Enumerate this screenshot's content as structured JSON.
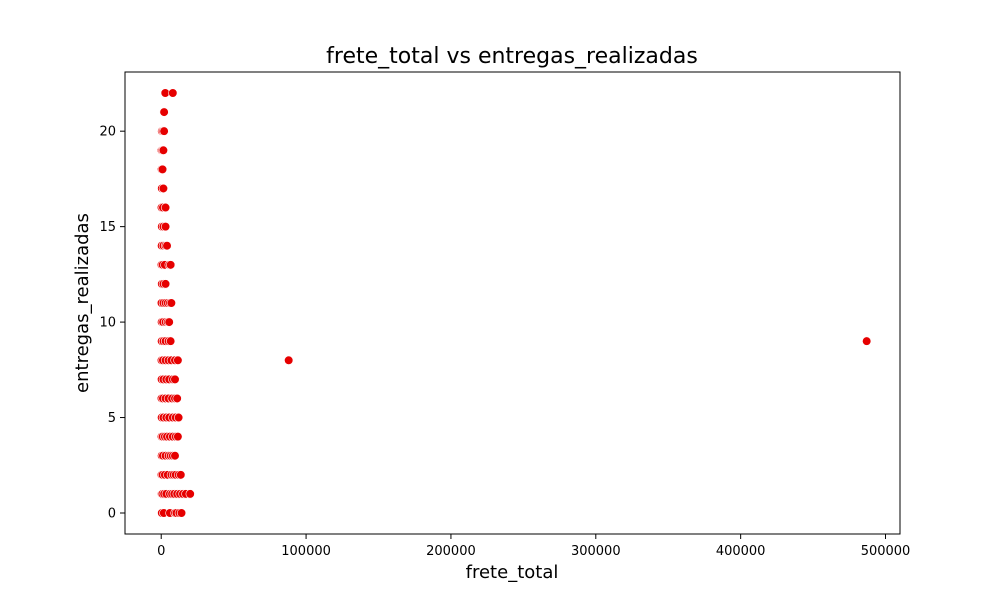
{
  "chart_data": {
    "type": "scatter",
    "title": "frete_total vs entregas_realizadas",
    "xlabel": "frete_total",
    "ylabel": "entregas_realizadas",
    "xlim": [
      -25000,
      510000
    ],
    "ylim": [
      -1.1,
      23.1
    ],
    "xticks": [
      0,
      100000,
      200000,
      300000,
      400000,
      500000
    ],
    "xtick_labels": [
      "0",
      "100000",
      "200000",
      "300000",
      "400000",
      "500000"
    ],
    "yticks": [
      0,
      5,
      10,
      15,
      20
    ],
    "ytick_labels": [
      "0",
      "5",
      "10",
      "15",
      "20"
    ],
    "grid": false,
    "legend": "none",
    "point_color": "#e60000",
    "point_edge_color": "#ffffff",
    "series": [
      {
        "points": [
          [
            400,
            0
          ],
          [
            1800,
            0
          ],
          [
            6000,
            0
          ],
          [
            9500,
            0
          ],
          [
            10500,
            0
          ],
          [
            12500,
            0
          ],
          [
            14000,
            0
          ],
          [
            300,
            1
          ],
          [
            800,
            1
          ],
          [
            2000,
            1
          ],
          [
            3500,
            1
          ],
          [
            6000,
            1
          ],
          [
            7500,
            1
          ],
          [
            9000,
            1
          ],
          [
            11000,
            1
          ],
          [
            13000,
            1
          ],
          [
            15000,
            1
          ],
          [
            17000,
            1
          ],
          [
            20000,
            1
          ],
          [
            200,
            2
          ],
          [
            900,
            2
          ],
          [
            2500,
            2
          ],
          [
            4500,
            2
          ],
          [
            7000,
            2
          ],
          [
            8500,
            2
          ],
          [
            10000,
            2
          ],
          [
            12000,
            2
          ],
          [
            13500,
            2
          ],
          [
            300,
            3
          ],
          [
            1200,
            3
          ],
          [
            3000,
            3
          ],
          [
            5000,
            3
          ],
          [
            6500,
            3
          ],
          [
            8000,
            3
          ],
          [
            9500,
            3
          ],
          [
            200,
            4
          ],
          [
            1000,
            4
          ],
          [
            2500,
            4
          ],
          [
            4000,
            4
          ],
          [
            6000,
            4
          ],
          [
            8000,
            4
          ],
          [
            10000,
            4
          ],
          [
            11500,
            4
          ],
          [
            300,
            5
          ],
          [
            1500,
            5
          ],
          [
            3500,
            5
          ],
          [
            5500,
            5
          ],
          [
            8000,
            5
          ],
          [
            10000,
            5
          ],
          [
            12000,
            5
          ],
          [
            200,
            6
          ],
          [
            1200,
            6
          ],
          [
            3000,
            6
          ],
          [
            5000,
            6
          ],
          [
            7500,
            6
          ],
          [
            9500,
            6
          ],
          [
            11000,
            6
          ],
          [
            300,
            7
          ],
          [
            1500,
            7
          ],
          [
            3500,
            7
          ],
          [
            5500,
            7
          ],
          [
            8000,
            7
          ],
          [
            9500,
            7
          ],
          [
            200,
            8
          ],
          [
            1200,
            8
          ],
          [
            3000,
            8
          ],
          [
            5000,
            8
          ],
          [
            7000,
            8
          ],
          [
            9500,
            8
          ],
          [
            11500,
            8
          ],
          [
            88000,
            8
          ],
          [
            300,
            9
          ],
          [
            1500,
            9
          ],
          [
            3000,
            9
          ],
          [
            5000,
            9
          ],
          [
            6500,
            9
          ],
          [
            487000,
            9
          ],
          [
            300,
            10
          ],
          [
            1300,
            10
          ],
          [
            3000,
            10
          ],
          [
            4500,
            10
          ],
          [
            5500,
            10
          ],
          [
            200,
            11
          ],
          [
            1500,
            11
          ],
          [
            3000,
            11
          ],
          [
            4500,
            11
          ],
          [
            6000,
            11
          ],
          [
            7000,
            11
          ],
          [
            400,
            12
          ],
          [
            1500,
            12
          ],
          [
            3000,
            12
          ],
          [
            200,
            13
          ],
          [
            1000,
            13
          ],
          [
            2500,
            13
          ],
          [
            5500,
            13
          ],
          [
            6500,
            13
          ],
          [
            300,
            14
          ],
          [
            1500,
            14
          ],
          [
            3000,
            14
          ],
          [
            4000,
            14
          ],
          [
            400,
            15
          ],
          [
            1500,
            15
          ],
          [
            3000,
            15
          ],
          [
            200,
            16
          ],
          [
            1200,
            16
          ],
          [
            3000,
            16
          ],
          [
            400,
            17
          ],
          [
            1500,
            17
          ],
          [
            300,
            18
          ],
          [
            900,
            18
          ],
          [
            200,
            19
          ],
          [
            800,
            19
          ],
          [
            1500,
            19
          ],
          [
            400,
            20
          ],
          [
            1200,
            20
          ],
          [
            2000,
            20
          ],
          [
            2000,
            21
          ],
          [
            2800,
            22
          ],
          [
            8000,
            22
          ]
        ]
      }
    ]
  }
}
